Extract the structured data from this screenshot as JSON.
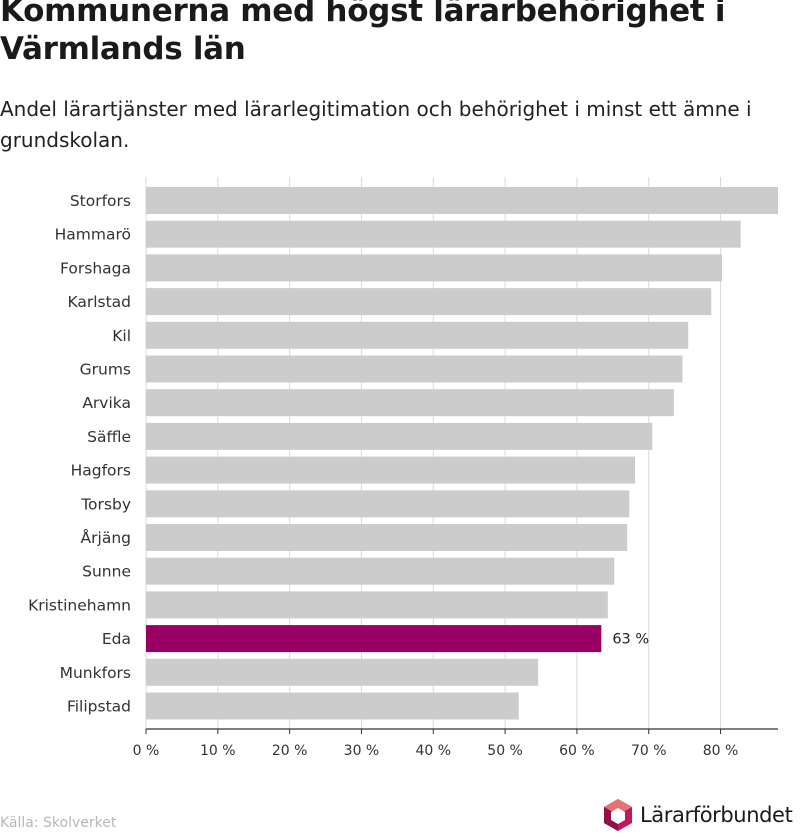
{
  "title": "Kommunerna med högst lärarbehörighet i Värmlands län",
  "subtitle": "Andel lärartjänster med lärarlegitimation och behörighet i minst ett ämne i grundskolan.",
  "source": "Källa: Skolverket",
  "logo_text": "Lärarförbundet",
  "logo_icon": "lararforbundet-logo-icon",
  "colors": {
    "bar": "#cccccc",
    "highlight": "#990066",
    "grid": "#d9d9d9",
    "axis": "#333333"
  },
  "chart_data": {
    "type": "bar",
    "orientation": "horizontal",
    "categories": [
      "Storfors",
      "Hammarö",
      "Forshaga",
      "Karlstad",
      "Kil",
      "Grums",
      "Arvika",
      "Säffle",
      "Hagfors",
      "Torsby",
      "Årjäng",
      "Sunne",
      "Kristinehamn",
      "Eda",
      "Munkfors",
      "Filipstad"
    ],
    "values": [
      88,
      82.8,
      80.2,
      78.7,
      75.5,
      74.7,
      73.5,
      70.5,
      68.1,
      67.3,
      67.0,
      65.2,
      64.3,
      63.4,
      54.6,
      51.9
    ],
    "highlight_category": "Eda",
    "data_labels": [
      {
        "category": "Eda",
        "text": "63 %"
      }
    ],
    "xlim": [
      0,
      88
    ],
    "xticks": [
      0,
      10,
      20,
      30,
      40,
      50,
      60,
      70,
      80
    ],
    "xtick_labels": [
      "0 %",
      "10 %",
      "20 %",
      "30 %",
      "40 %",
      "50 %",
      "60 %",
      "70 %",
      "80 %"
    ],
    "grid": true,
    "legend": "none"
  }
}
